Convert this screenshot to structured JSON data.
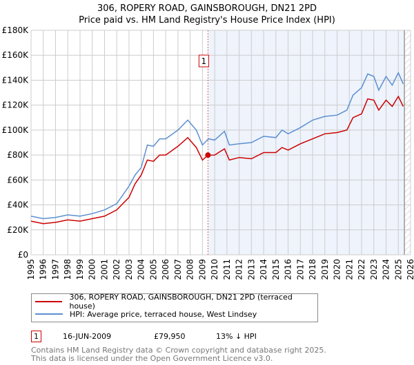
{
  "title": "306, ROPERY ROAD, GAINSBOROUGH, DN21 2PD",
  "subtitle": "Price paid vs. HM Land Registry's House Price Index (HPI)",
  "chart_data": {
    "type": "line",
    "xlim": [
      1995,
      2026
    ],
    "ylim": [
      0,
      180000
    ],
    "yticks": [
      {
        "v": 0,
        "label": "£0"
      },
      {
        "v": 20000,
        "label": "£20K"
      },
      {
        "v": 40000,
        "label": "£40K"
      },
      {
        "v": 60000,
        "label": "£60K"
      },
      {
        "v": 80000,
        "label": "£80K"
      },
      {
        "v": 100000,
        "label": "£100K"
      },
      {
        "v": 120000,
        "label": "£120K"
      },
      {
        "v": 140000,
        "label": "£140K"
      },
      {
        "v": 160000,
        "label": "£160K"
      },
      {
        "v": 180000,
        "label": "£180K"
      }
    ],
    "xticks": [
      "1995",
      "1996",
      "1997",
      "1998",
      "1999",
      "2000",
      "2001",
      "2002",
      "2003",
      "2004",
      "2005",
      "2006",
      "2007",
      "2008",
      "2009",
      "2010",
      "2011",
      "2012",
      "2013",
      "2014",
      "2015",
      "2016",
      "2017",
      "2018",
      "2019",
      "2020",
      "2021",
      "2022",
      "2023",
      "2024",
      "2025",
      "2026"
    ],
    "grid": true,
    "highlight_start": 2009.45,
    "data_end": 2025.5,
    "series": [
      {
        "name": "306, ROPERY ROAD, GAINSBOROUGH, DN21 2PD (terraced house)",
        "color": "#cc0000",
        "x": [
          1995,
          1996,
          1997,
          1998,
          1999,
          2000,
          2001,
          2002,
          2003,
          2003.5,
          2004,
          2004.5,
          2005,
          2005.5,
          2006,
          2007,
          2007.8,
          2008.5,
          2009,
          2009.45,
          2010,
          2010.8,
          2011.2,
          2012,
          2013,
          2014,
          2015,
          2015.5,
          2016,
          2017,
          2018,
          2019,
          2020,
          2020.8,
          2021.3,
          2022,
          2022.5,
          2023,
          2023.4,
          2024,
          2024.5,
          2025,
          2025.4
        ],
        "y": [
          27000,
          25000,
          26000,
          28000,
          27000,
          29000,
          31000,
          36000,
          46000,
          57000,
          64000,
          76000,
          75000,
          80000,
          80000,
          87000,
          94000,
          86000,
          76000,
          79950,
          80000,
          85000,
          76000,
          78000,
          77000,
          82000,
          82000,
          86000,
          84000,
          89000,
          93000,
          97000,
          98000,
          100000,
          110000,
          113000,
          125000,
          124000,
          116000,
          124000,
          119000,
          127000,
          119000
        ]
      },
      {
        "name": "HPI: Average price, terraced house, West Lindsey",
        "color": "#5b8fd0",
        "x": [
          1995,
          1996,
          1997,
          1998,
          1999,
          2000,
          2001,
          2002,
          2003,
          2003.5,
          2004,
          2004.5,
          2005,
          2005.5,
          2006,
          2007,
          2007.8,
          2008.5,
          2009,
          2009.5,
          2010,
          2010.8,
          2011.2,
          2012,
          2013,
          2014,
          2015,
          2015.5,
          2016,
          2017,
          2018,
          2019,
          2020,
          2020.8,
          2021.3,
          2022,
          2022.5,
          2023,
          2023.4,
          2024,
          2024.5,
          2025,
          2025.4
        ],
        "y": [
          31000,
          29000,
          30000,
          32000,
          31000,
          33000,
          36000,
          41000,
          55000,
          64000,
          70000,
          88000,
          87000,
          93000,
          93000,
          100000,
          108000,
          100000,
          88000,
          93000,
          92000,
          99000,
          88000,
          89000,
          90000,
          95000,
          94000,
          100000,
          97000,
          102000,
          108000,
          111000,
          112000,
          116000,
          128000,
          134000,
          145000,
          143000,
          132000,
          143000,
          136000,
          146000,
          137000
        ]
      }
    ],
    "annotations": [
      {
        "label": "1",
        "x": 2009.45,
        "y": 79950
      }
    ]
  },
  "legend": {
    "items": [
      "306, ROPERY ROAD, GAINSBOROUGH, DN21 2PD (terraced house)",
      "HPI: Average price, terraced house, West Lindsey"
    ]
  },
  "transactions": [
    {
      "num": "1",
      "date": "16-JUN-2009",
      "price": "£79,950",
      "delta": "13% ↓ HPI"
    }
  ],
  "footer": {
    "line1": "Contains HM Land Registry data © Crown copyright and database right 2025.",
    "line2": "This data is licensed under the Open Government Licence v3.0."
  }
}
